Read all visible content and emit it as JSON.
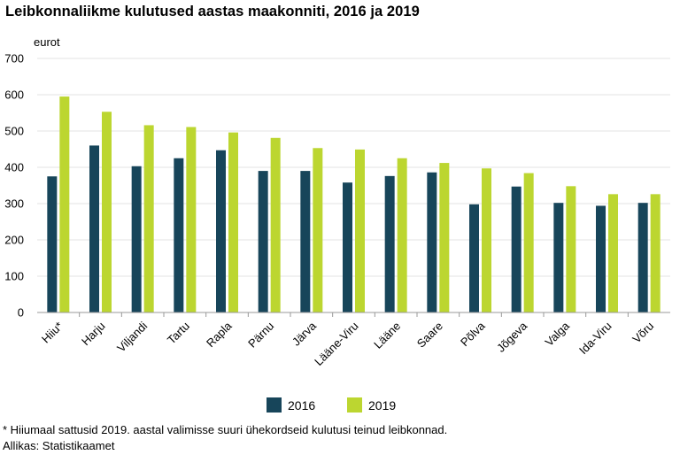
{
  "title": "Leibkonnaliikme kulutused aastas maakonniti, 2016 ja 2019",
  "unit_label": "eurot",
  "footnote": "* Hiiumaal sattusid 2019. aastal valimisse suuri ühekordseid kulutusi teinud leibkonnad.",
  "source": "Allikas: Statistikaamet",
  "colors": {
    "s2016": "#17455a",
    "s2019": "#bcd630",
    "grid": "#e3e3e3",
    "axis": "#999999"
  },
  "chart_data": {
    "type": "bar",
    "title": "Leibkonnaliikme kulutused aastas maakonniti, 2016 ja 2019",
    "ylabel": "eurot",
    "xlabel": "",
    "ylim": [
      0,
      700
    ],
    "yticks": [
      "0",
      "100",
      "200",
      "300",
      "400",
      "500",
      "600",
      "700"
    ],
    "grid": true,
    "legend_position": "bottom",
    "categories": [
      "Hiiu*",
      "Harju",
      "Viljandi",
      "Tartu",
      "Rapla",
      "Pärnu",
      "Järva",
      "Lääne-Viru",
      "Lääne",
      "Saare",
      "Põlva",
      "Jõgeva",
      "Valga",
      "Ida-Viru",
      "Võru"
    ],
    "series": [
      {
        "name": "2016",
        "values": [
          375,
          460,
          403,
          425,
          447,
          390,
          390,
          358,
          376,
          386,
          298,
          347,
          302,
          294,
          302
        ]
      },
      {
        "name": "2019",
        "values": [
          595,
          553,
          516,
          511,
          496,
          481,
          453,
          449,
          425,
          412,
          397,
          384,
          348,
          326,
          326
        ]
      }
    ]
  }
}
